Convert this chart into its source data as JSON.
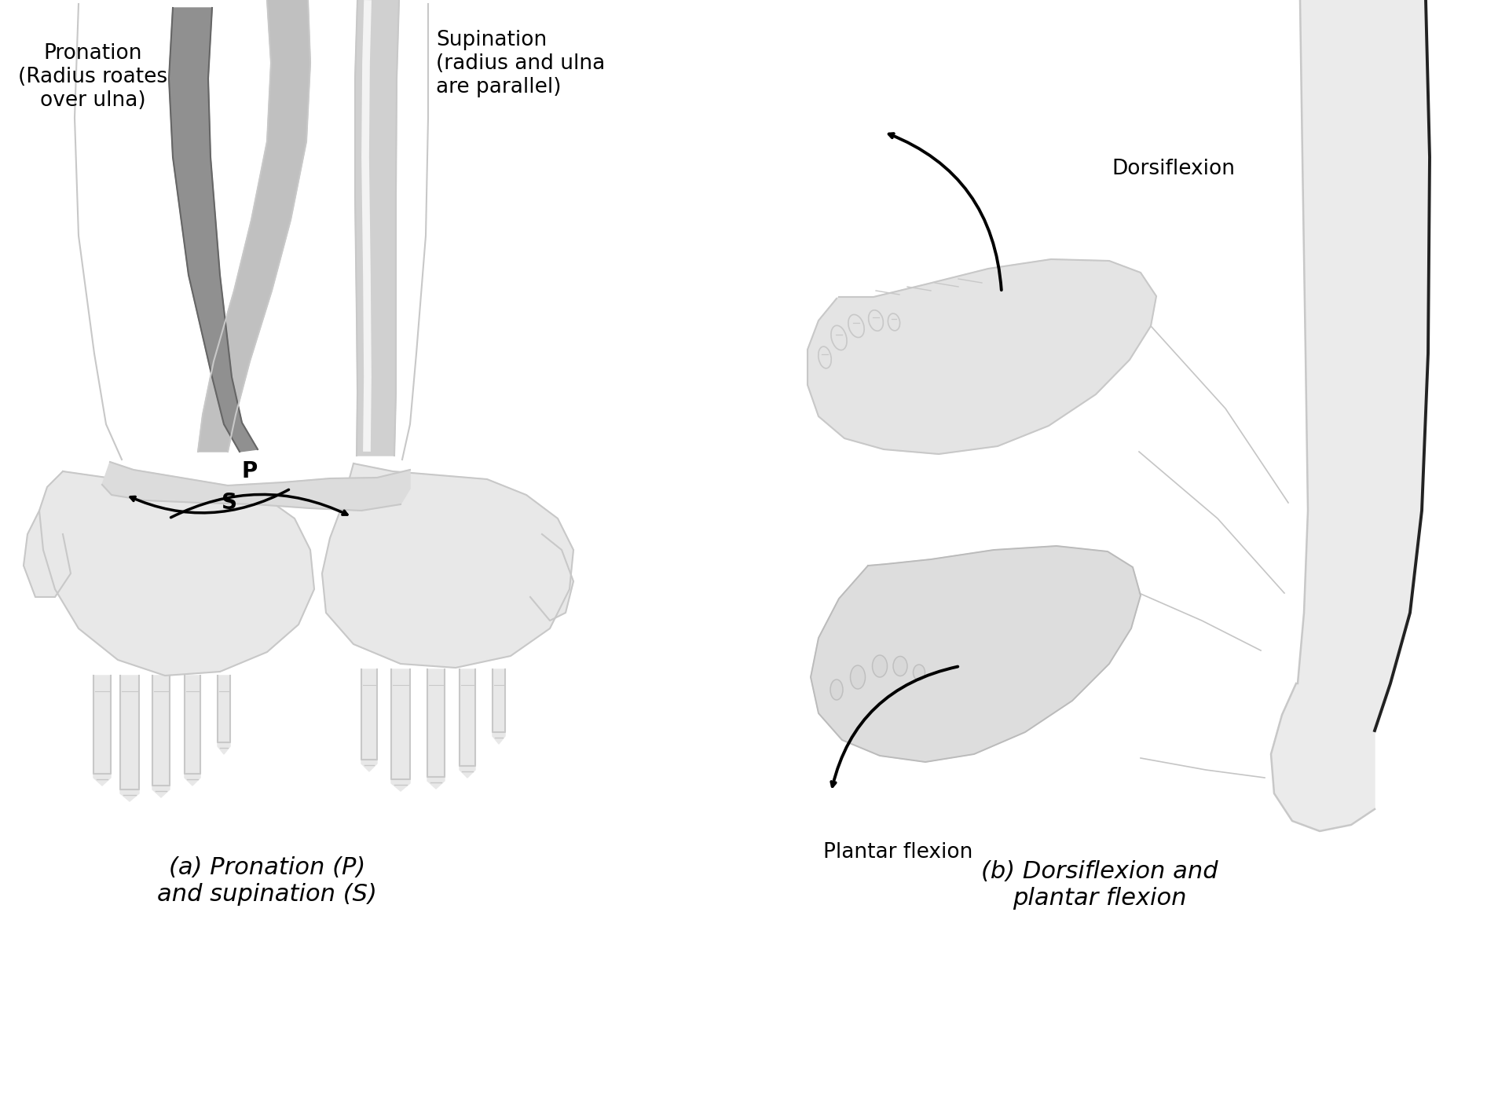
{
  "bg_color": "#ffffff",
  "fig_width": 19.21,
  "fig_height": 13.99,
  "dpi": 100,
  "title_a": "(a) Pronation (P)\nand supination (S)",
  "title_b": "(b) Dorsiflexion and\nplantar flexion",
  "label_pronation": "Pronation\n(Radius roates\nover ulna)",
  "label_supination": "Supination\n(radius and ulna\nare parallel)",
  "label_dorsiflexion": "Dorsiflexion",
  "label_plantar": "Plantar flexion",
  "label_P": "P",
  "label_S": "S",
  "text_color": "#000000",
  "line_color": "#c8c8c8",
  "bone_color_light": "#d0d0d0",
  "bone_color_dark": "#808080",
  "arrow_color": "#000000",
  "title_fontsize": 22,
  "label_fontsize": 19,
  "annotation_fontsize": 18,
  "subtitle_fontsize": 20
}
